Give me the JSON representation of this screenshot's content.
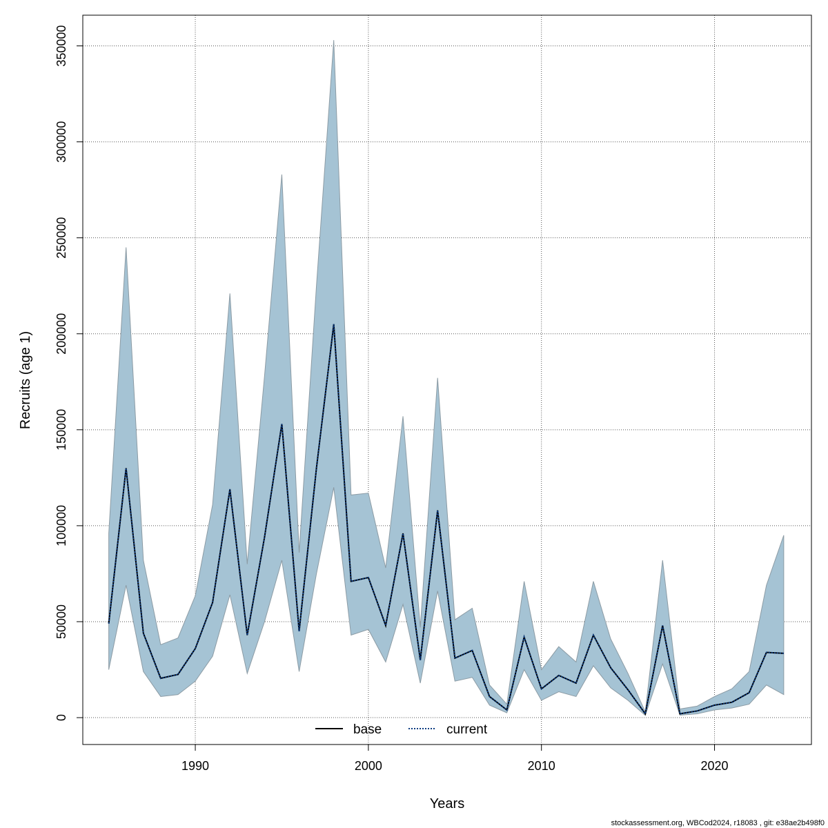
{
  "chart_data": {
    "type": "area",
    "xlabel": "Years",
    "ylabel": "Recruits (age 1)",
    "xlim": [
      1983.5,
      2025.6
    ],
    "ylim": [
      -14000,
      366000
    ],
    "x_ticks": [
      1990,
      2000,
      2010,
      2020
    ],
    "y_ticks": [
      0,
      50000,
      100000,
      150000,
      200000,
      250000,
      300000,
      350000
    ],
    "grid": true,
    "legend_placement": "bottom",
    "x": [
      1985,
      1986,
      1987,
      1988,
      1989,
      1990,
      1991,
      1992,
      1993,
      1994,
      1995,
      1996,
      1997,
      1998,
      1999,
      2000,
      2001,
      2002,
      2003,
      2004,
      2005,
      2006,
      2007,
      2008,
      2009,
      2010,
      2011,
      2012,
      2013,
      2014,
      2015,
      2016,
      2017,
      2018,
      2019,
      2020,
      2021,
      2022,
      2023,
      2024
    ],
    "band": {
      "color": "#a5c3d4",
      "edge_color": "#8c9ba4",
      "upper": [
        96000,
        245000,
        82000,
        38000,
        41500,
        63500,
        111000,
        221000,
        80000,
        178000,
        283000,
        86000,
        225000,
        353000,
        116000,
        117000,
        78000,
        157000,
        47000,
        177000,
        51000,
        57000,
        17000,
        7000,
        71000,
        25000,
        37000,
        29000,
        71000,
        41000,
        23000,
        3000,
        82000,
        4500,
        6000,
        11000,
        15000,
        24000,
        69000,
        95000
      ],
      "lower": [
        25000,
        69000,
        24000,
        11000,
        12000,
        19000,
        32000,
        64000,
        23000,
        50000,
        82000,
        24000,
        75000,
        120000,
        43000,
        46000,
        29000,
        59000,
        18000,
        66000,
        19000,
        21000,
        6500,
        2500,
        25000,
        9000,
        13500,
        11000,
        27000,
        15500,
        9000,
        1200,
        28000,
        1300,
        2000,
        4000,
        5000,
        7000,
        17000,
        12000
      ]
    },
    "series": [
      {
        "name": "base",
        "color": "#000000",
        "dash": "solid",
        "values": [
          49000,
          130000,
          44000,
          20500,
          22500,
          36000,
          60000,
          119000,
          43000,
          94000,
          153000,
          45000,
          130000,
          205000,
          71000,
          73000,
          48000,
          96000,
          30000,
          108000,
          31000,
          35000,
          11000,
          4000,
          42000,
          15000,
          22000,
          18000,
          43000,
          26000,
          14500,
          2000,
          48000,
          2000,
          3500,
          6500,
          8000,
          13000,
          34000,
          33500
        ]
      },
      {
        "name": "current",
        "color": "#0a3a80",
        "dash": "dotted",
        "values": [
          49000,
          130000,
          44000,
          20500,
          22500,
          36000,
          60000,
          119000,
          43000,
          94000,
          153000,
          45000,
          130000,
          205000,
          71000,
          73000,
          48000,
          96000,
          30000,
          108000,
          31000,
          35000,
          11000,
          4000,
          42000,
          15000,
          22000,
          18000,
          43000,
          26000,
          14500,
          2000,
          48000,
          2000,
          3500,
          6500,
          8000,
          13000,
          34000,
          33500
        ]
      }
    ],
    "legend": [
      "base",
      "current"
    ]
  },
  "footer": "stockassessment.org, WBCod2024, r18083 , git: e38ae2b498f0"
}
